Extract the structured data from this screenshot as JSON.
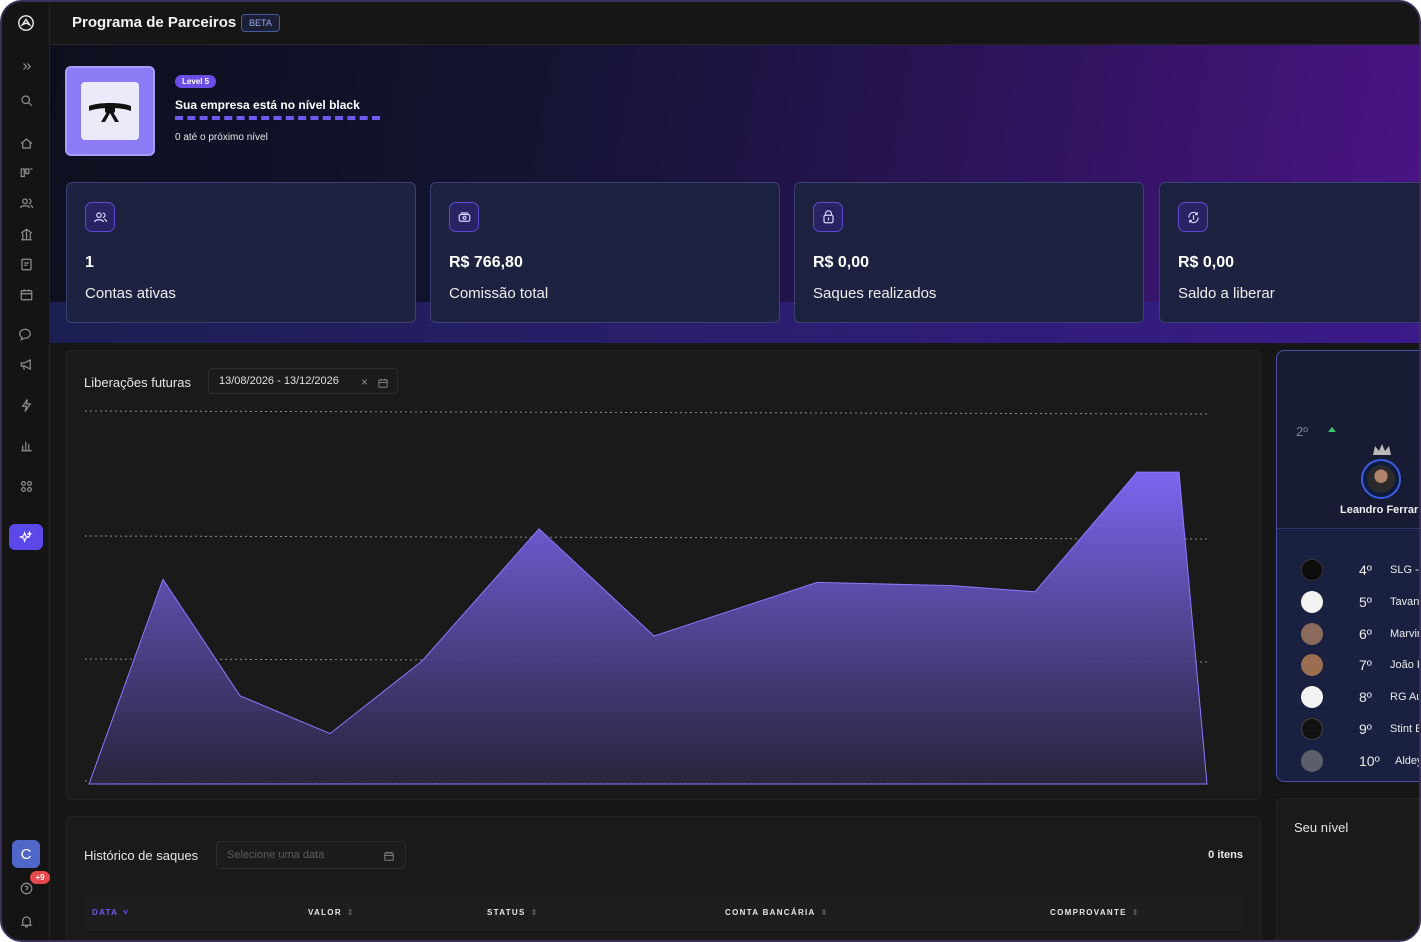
{
  "app": {
    "title": "Programa de Parceiros",
    "badge": "BETA"
  },
  "sidebar": {
    "icons": [
      "expand-icon",
      "search-icon",
      "home-icon",
      "kanban-icon",
      "users-icon",
      "bank-icon",
      "receipt-icon",
      "calendar-icon",
      "chat-icon",
      "megaphone-icon",
      "bolt-icon",
      "chart-icon",
      "apps-icon",
      "sparkles-icon"
    ],
    "active": "sparkles-icon",
    "user_initial": "C",
    "notifications_badge": "+9"
  },
  "level": {
    "pill": "Level 5",
    "title": "Sua empresa está no nível black",
    "next": "0 até o próximo nível"
  },
  "stats": [
    {
      "icon": "users-icon",
      "value": "1",
      "label": "Contas ativas"
    },
    {
      "icon": "money-icon",
      "value": "R$ 766,80",
      "label": "Comissão total"
    },
    {
      "icon": "wallet-icon",
      "value": "R$ 0,00",
      "label": "Saques realizados"
    },
    {
      "icon": "refresh-money-icon",
      "value": "R$ 0,00",
      "label": "Saldo a liberar"
    }
  ],
  "chart": {
    "title": "Liberações futuras",
    "date_range": "13/08/2026 - 13/12/2026",
    "accent": "#7b66f0"
  },
  "chart_data": {
    "type": "area",
    "values": [
      0.0,
      0.65,
      0.28,
      0.16,
      0.39,
      0.81,
      0.47,
      0.64,
      0.63,
      0.61,
      0.99,
      0.99,
      0.0
    ]
  },
  "history": {
    "title": "Histórico de saques",
    "date_placeholder": "Selecione uma data",
    "count": "0 itens",
    "columns": [
      {
        "label": "DATA",
        "sort": "˅",
        "active": true
      },
      {
        "label": "VALOR",
        "sort": "⇕"
      },
      {
        "label": "STATUS",
        "sort": "⇕"
      },
      {
        "label": "CONTA BANCÁRIA",
        "sort": "⇕"
      },
      {
        "label": "COMPROVANTE",
        "sort": "⇕"
      }
    ]
  },
  "ranking": {
    "top_position": "2º",
    "top_name": "Leandro Ferrari",
    "rows": [
      {
        "pos": "4º",
        "name": "SLG - S",
        "avatar": "#0d0d0d"
      },
      {
        "pos": "5º",
        "name": "Tavan",
        "avatar": "#f3f3f3"
      },
      {
        "pos": "6º",
        "name": "Marvin",
        "avatar": "#8a6a5a"
      },
      {
        "pos": "7º",
        "name": "João R",
        "avatar": "#9b6e52"
      },
      {
        "pos": "8º",
        "name": "RG Aut",
        "avatar": "#f3f3f3"
      },
      {
        "pos": "9º",
        "name": "Stint E",
        "avatar": "#111111"
      },
      {
        "pos": "10º",
        "name": "Aldey",
        "avatar": "#5a5f6a"
      }
    ]
  },
  "your_level": {
    "title": "Seu nível"
  }
}
